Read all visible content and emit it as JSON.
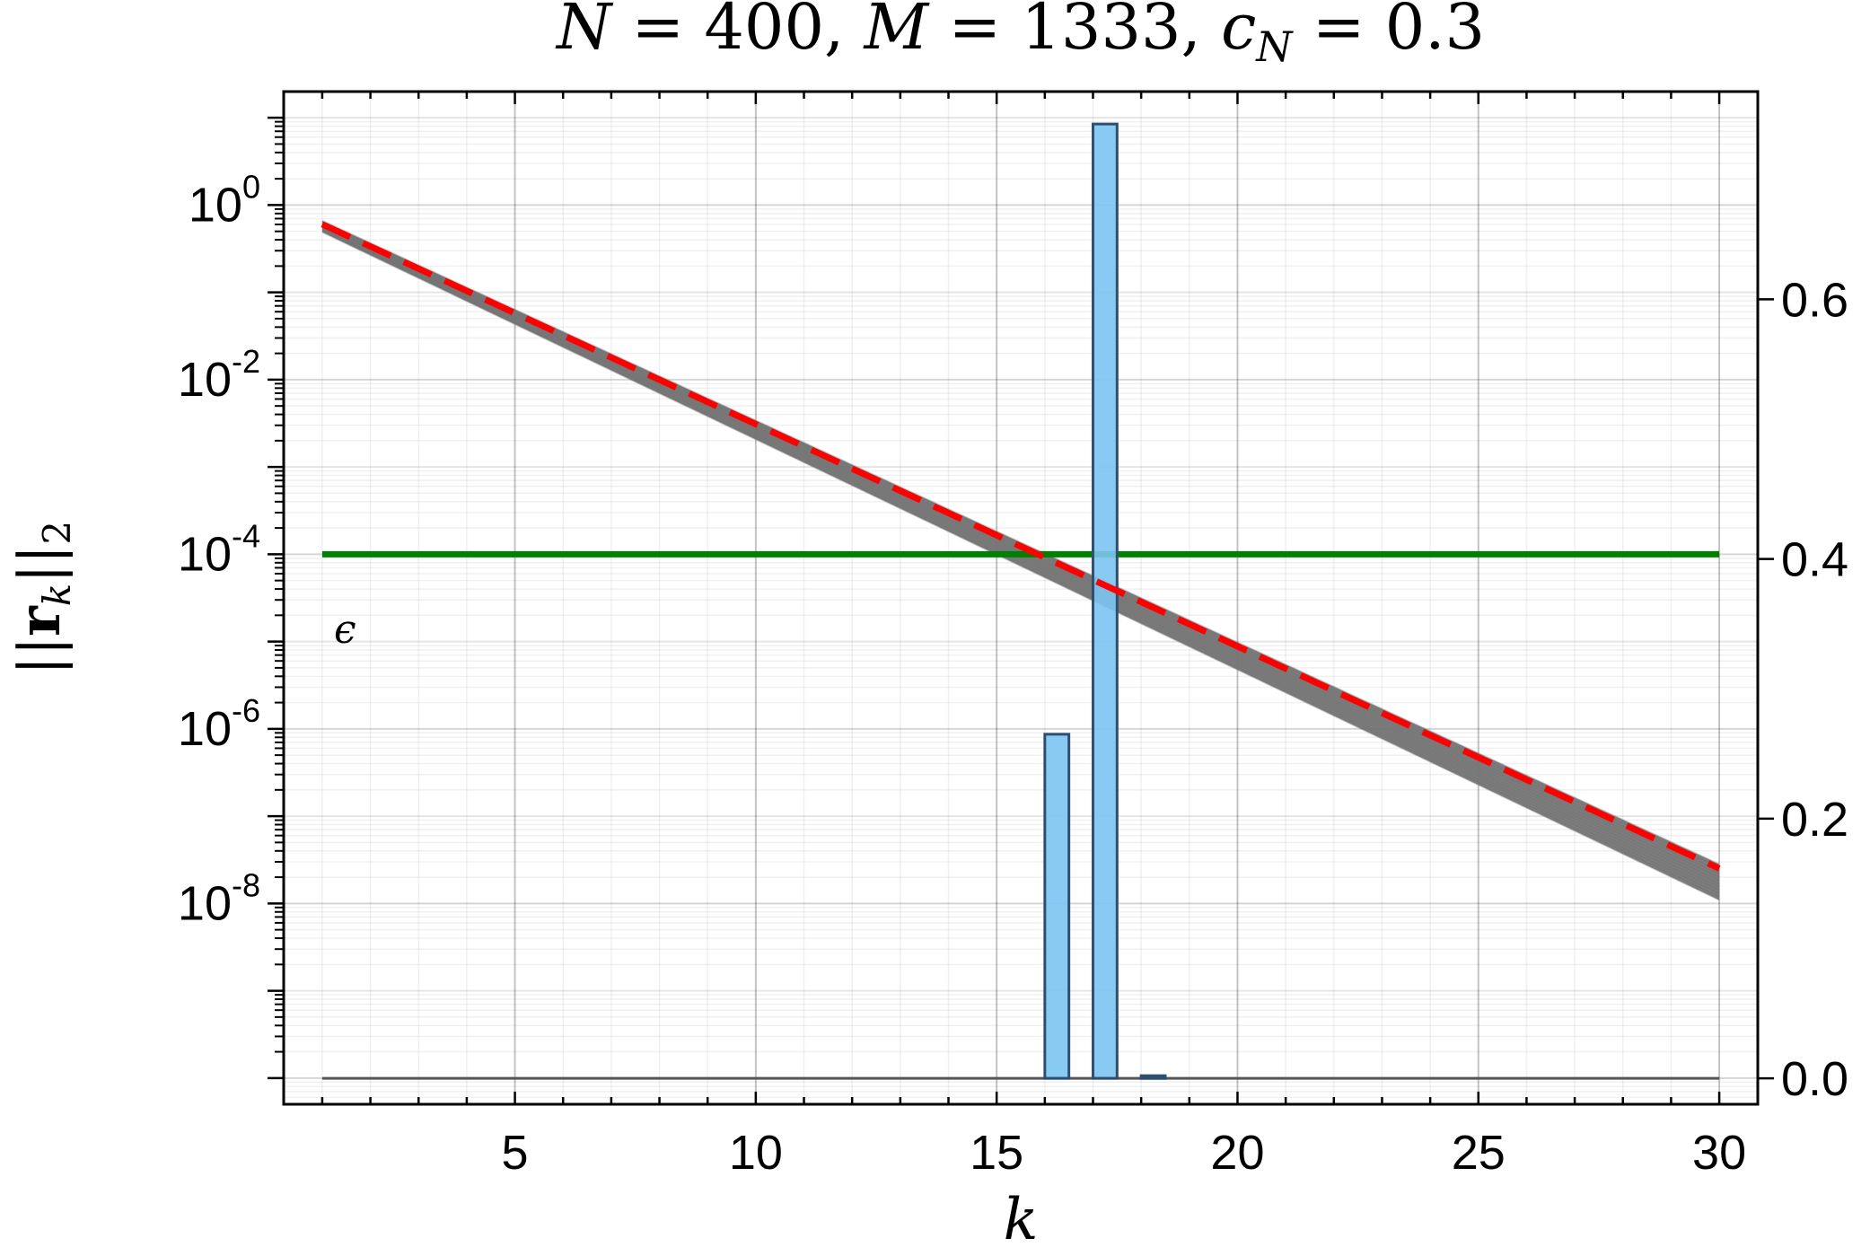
{
  "chart_data": {
    "type": "line",
    "title": {
      "N_sym": "N",
      "N_val": "400",
      "M_sym": "M",
      "M_val": "1333",
      "c_sym": "c",
      "c_sub": "N",
      "c_val": "0.3",
      "eq": "=",
      "comma": ","
    },
    "xlabel": "k",
    "ylabel": {
      "bar": "||",
      "r": "r",
      "sub_k": "k",
      "sub_2": "2"
    },
    "xlim": [
      0.2,
      30.8
    ],
    "left_axis": {
      "scale": "log",
      "ylim_exp": [
        -10.3,
        1.3
      ],
      "major_ticks": [
        {
          "base": "10",
          "exp": "0",
          "value": 0
        },
        {
          "base": "10",
          "exp": "-2",
          "value": -2
        },
        {
          "base": "10",
          "exp": "-4",
          "value": -4
        },
        {
          "base": "10",
          "exp": "-6",
          "value": -6
        },
        {
          "base": "10",
          "exp": "-8",
          "value": -8
        }
      ]
    },
    "right_axis": {
      "scale": "linear",
      "ylim": [
        -0.02,
        0.76
      ],
      "ticks": [
        {
          "value": 0.0,
          "label": "0.0"
        },
        {
          "value": 0.2,
          "label": "0.2"
        },
        {
          "value": 0.4,
          "label": "0.4"
        },
        {
          "value": 0.6,
          "label": "0.6"
        }
      ]
    },
    "x_ticks": [
      {
        "value": 5,
        "label": "5"
      },
      {
        "value": 10,
        "label": "10"
      },
      {
        "value": 15,
        "label": "15"
      },
      {
        "value": 20,
        "label": "20"
      },
      {
        "value": 25,
        "label": "25"
      },
      {
        "value": 30,
        "label": "30"
      }
    ],
    "grid": true,
    "residual_band": {
      "color": "#777777",
      "log10_start": [
        -0.31,
        -0.18
      ],
      "log10_end": [
        -7.96,
        -7.55
      ],
      "x_range": [
        1,
        30
      ]
    },
    "dashed_fit": {
      "color": "#ff0000",
      "x": [
        1,
        30
      ],
      "log10_y": [
        -0.22,
        -7.6
      ]
    },
    "epsilon_line": {
      "color": "#008000",
      "log10_y": -4,
      "x_range": [
        1,
        30
      ],
      "label": "ϵ"
    },
    "histogram": {
      "color": "#7cc4f2",
      "edge_color": "#2f4f6f",
      "bin_width": 0.5,
      "bars": [
        {
          "x_left": 16.0,
          "value": 0.265
        },
        {
          "x_left": 17.0,
          "value": 0.735
        },
        {
          "x_left": 18.0,
          "value": 0.002
        }
      ]
    }
  }
}
